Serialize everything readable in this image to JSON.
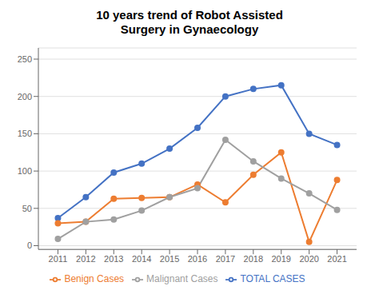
{
  "chart_data": {
    "type": "line",
    "title": "10 years trend of Robot Assisted\nSurgery in Gynaecology",
    "x": [
      2011,
      2012,
      2013,
      2014,
      2015,
      2016,
      2017,
      2018,
      2019,
      2020,
      2021
    ],
    "series": [
      {
        "name": "TOTAL CASES",
        "color": "#4472C4",
        "marker": "circle",
        "values": [
          37,
          65,
          98,
          110,
          130,
          158,
          200,
          210,
          215,
          150,
          135
        ]
      },
      {
        "name": "Benign Cases",
        "color": "#ED7D31",
        "marker": "circle",
        "values": [
          30,
          32,
          63,
          64,
          65,
          82,
          58,
          95,
          125,
          5,
          88
        ]
      },
      {
        "name": "Malignant Cases",
        "color": "#A0A0A0",
        "marker": "circle",
        "values": [
          9,
          32,
          35,
          47,
          65,
          77,
          142,
          113,
          90,
          70,
          48
        ]
      }
    ],
    "xlim": [
      2010.3,
      2021.7
    ],
    "xticks": [
      2011,
      2012,
      2013,
      2014,
      2015,
      2016,
      2017,
      2018,
      2019,
      2020,
      2021
    ],
    "ylim": [
      -5,
      265
    ],
    "yticks": [
      0,
      50,
      100,
      150,
      200,
      250
    ],
    "grid": "y",
    "legend": "bottom"
  }
}
